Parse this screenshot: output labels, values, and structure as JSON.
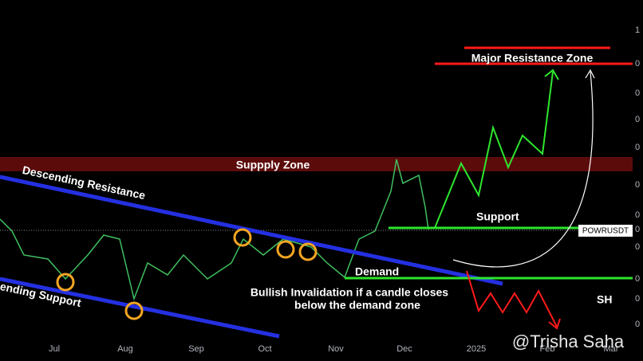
{
  "chart_title": "POWRUSDT",
  "annotations": {
    "supply": "Suppply Zone",
    "resistance": "Descending Resistance",
    "support_line": "ending Support",
    "support": "Support",
    "demand": "Demand",
    "invalid_1": "Bullish Invalidation if a candle closes",
    "invalid_2": "below the demand zone",
    "major": "Major Resistance Zone",
    "sh": "SH"
  },
  "months": [
    "Jul",
    "Aug",
    "Sep",
    "Oct",
    "Nov",
    "Dec",
    "2025",
    "Feb",
    "Mar"
  ],
  "price_labels": [
    "1",
    "0",
    "0",
    "0",
    "0",
    "0",
    "0",
    "0",
    "0",
    "0",
    "0",
    "0"
  ],
  "watermark": "@Trisha Saha"
}
